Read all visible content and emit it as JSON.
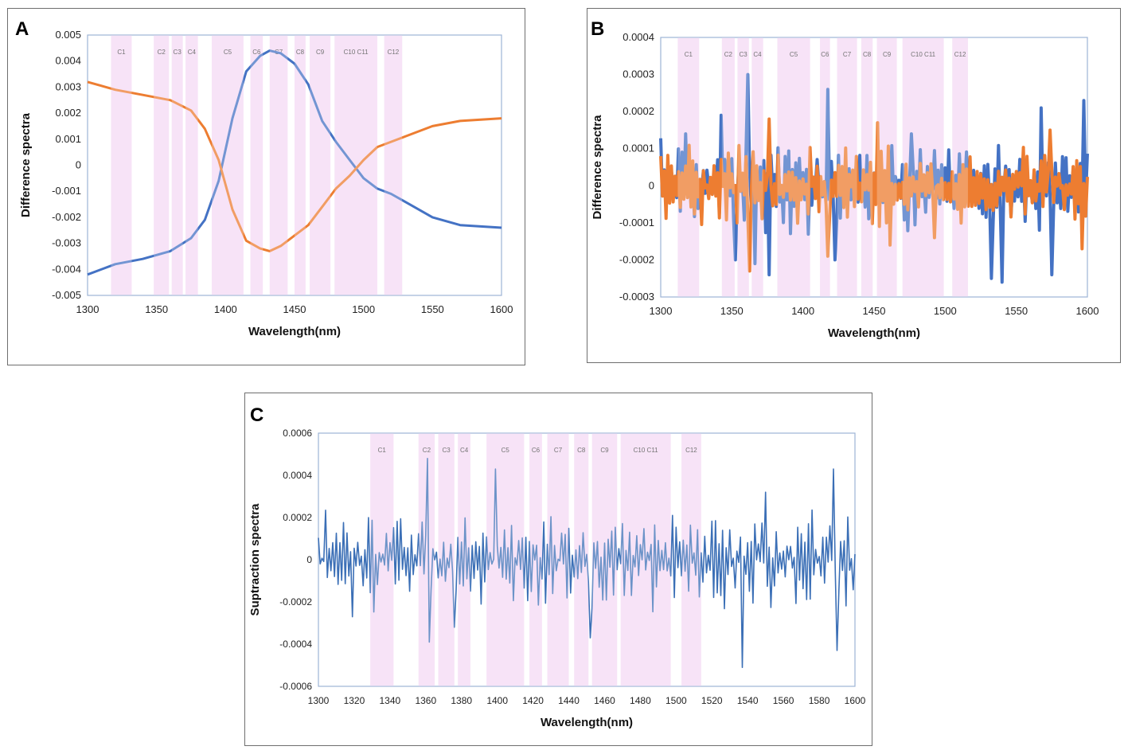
{
  "chart_data": [
    {
      "id": "A",
      "type": "line",
      "panel_label": "A",
      "xlabel": "Wavelength(nm)",
      "ylabel": "Difference spectra",
      "xlim": [
        1300,
        1600
      ],
      "ylim": [
        -0.005,
        0.005
      ],
      "x_ticks": [
        "1300",
        "1350",
        "1400",
        "1450",
        "1500",
        "1550",
        "1600"
      ],
      "y_ticks": [
        "0.005",
        "0.004",
        "0.003",
        "0.002",
        "0.001",
        "0",
        "-0.001",
        "-0.002",
        "-0.003",
        "-0.004",
        "-0.005"
      ],
      "highlight_color": "#f2d3f2",
      "regions": [
        {
          "label": "C1",
          "x0": 1317,
          "x1": 1332
        },
        {
          "label": "C2",
          "x0": 1348,
          "x1": 1359
        },
        {
          "label": "C3",
          "x0": 1361,
          "x1": 1369
        },
        {
          "label": "C4",
          "x0": 1371,
          "x1": 1380
        },
        {
          "label": "C5",
          "x0": 1390,
          "x1": 1413
        },
        {
          "label": "C6",
          "x0": 1418,
          "x1": 1427
        },
        {
          "label": "C7",
          "x0": 1432,
          "x1": 1445
        },
        {
          "label": "C8",
          "x0": 1450,
          "x1": 1458
        },
        {
          "label": "C9",
          "x0": 1461,
          "x1": 1476
        },
        {
          "label": "C10 C11",
          "x0": 1479,
          "x1": 1510
        },
        {
          "label": "C12",
          "x0": 1515,
          "x1": 1528
        }
      ],
      "series": [
        {
          "name": "blue",
          "color": "#4472c4",
          "stroke": 3,
          "x": [
            1300,
            1320,
            1340,
            1360,
            1375,
            1385,
            1395,
            1405,
            1415,
            1425,
            1432,
            1440,
            1450,
            1460,
            1470,
            1480,
            1490,
            1500,
            1510,
            1520,
            1530,
            1550,
            1570,
            1600
          ],
          "y": [
            -0.0042,
            -0.0038,
            -0.0036,
            -0.0033,
            -0.0028,
            -0.0021,
            -0.0006,
            0.0018,
            0.0036,
            0.0042,
            0.0044,
            0.0043,
            0.0039,
            0.0031,
            0.0017,
            0.0009,
            0.0002,
            -0.0005,
            -0.0009,
            -0.0011,
            -0.0014,
            -0.002,
            -0.0023,
            -0.0024
          ]
        },
        {
          "name": "orange",
          "color": "#ed7d31",
          "stroke": 3,
          "x": [
            1300,
            1320,
            1340,
            1360,
            1375,
            1385,
            1395,
            1405,
            1415,
            1425,
            1432,
            1440,
            1450,
            1460,
            1470,
            1480,
            1490,
            1500,
            1510,
            1520,
            1530,
            1550,
            1570,
            1600
          ],
          "y": [
            0.0032,
            0.0029,
            0.0027,
            0.0025,
            0.0021,
            0.0014,
            0.0002,
            -0.0017,
            -0.0029,
            -0.0032,
            -0.0033,
            -0.0031,
            -0.0027,
            -0.0023,
            -0.0016,
            -0.0009,
            -0.0004,
            0.0002,
            0.0007,
            0.0009,
            0.0011,
            0.0015,
            0.0017,
            0.0018
          ]
        }
      ]
    },
    {
      "id": "B",
      "type": "line",
      "panel_label": "B",
      "xlabel": "Wavelength(nm)",
      "ylabel": "Difference spectra",
      "xlim": [
        1300,
        1600
      ],
      "ylim": [
        -0.0003,
        0.0004
      ],
      "x_ticks": [
        "1300",
        "1350",
        "1400",
        "1450",
        "1500",
        "1550",
        "1600"
      ],
      "y_ticks": [
        "0.0004",
        "0.0003",
        "0.0002",
        "0.0001",
        "0",
        "-0.0001",
        "-0.0002",
        "-0.0003"
      ],
      "highlight_color": "#f2d3f2",
      "regions": [
        {
          "label": "C1",
          "x0": 1312,
          "x1": 1327
        },
        {
          "label": "C2",
          "x0": 1343,
          "x1": 1352
        },
        {
          "label": "C3",
          "x0": 1354,
          "x1": 1362
        },
        {
          "label": "C4",
          "x0": 1364,
          "x1": 1372
        },
        {
          "label": "C5",
          "x0": 1382,
          "x1": 1405
        },
        {
          "label": "C6",
          "x0": 1412,
          "x1": 1419
        },
        {
          "label": "C7",
          "x0": 1424,
          "x1": 1438
        },
        {
          "label": "C8",
          "x0": 1441,
          "x1": 1449
        },
        {
          "label": "C9",
          "x0": 1452,
          "x1": 1466
        },
        {
          "label": "C10 C11",
          "x0": 1470,
          "x1": 1499
        },
        {
          "label": "C12",
          "x0": 1505,
          "x1": 1516
        }
      ],
      "series": [
        {
          "name": "blue",
          "color": "#4472c4",
          "stroke": 4,
          "kind": "noise",
          "seed": 7,
          "points": 240,
          "amplitude": 9e-05,
          "peaks": [
            {
              "x": 1318,
              "y": 0.00014
            },
            {
              "x": 1342,
              "y": 0.00019
            },
            {
              "x": 1352,
              "y": -0.0002
            },
            {
              "x": 1361,
              "y": 0.0003
            },
            {
              "x": 1366,
              "y": -0.00021
            },
            {
              "x": 1376,
              "y": -0.00024
            },
            {
              "x": 1418,
              "y": 0.00026
            },
            {
              "x": 1422,
              "y": -0.0002
            },
            {
              "x": 1476,
              "y": 0.00014
            },
            {
              "x": 1532,
              "y": -0.00025
            },
            {
              "x": 1540,
              "y": -0.00026
            },
            {
              "x": 1568,
              "y": 0.00021
            },
            {
              "x": 1575,
              "y": -0.00024
            },
            {
              "x": 1598,
              "y": 0.00023
            }
          ]
        },
        {
          "name": "orange",
          "color": "#ed7d31",
          "stroke": 4,
          "kind": "noise",
          "seed": 19,
          "points": 240,
          "amplitude": 8e-05,
          "peaks": [
            {
              "x": 1362,
              "y": -0.00023
            },
            {
              "x": 1376,
              "y": 0.00018
            },
            {
              "x": 1418,
              "y": -0.00019
            },
            {
              "x": 1452,
              "y": 0.00017
            },
            {
              "x": 1461,
              "y": -0.00016
            },
            {
              "x": 1492,
              "y": -0.00014
            },
            {
              "x": 1574,
              "y": 0.00015
            },
            {
              "x": 1596,
              "y": -0.00017
            }
          ]
        }
      ]
    },
    {
      "id": "C",
      "type": "line",
      "panel_label": "C",
      "xlabel": "Wavelength(nm)",
      "ylabel": "Suptraction spectra",
      "xlim": [
        1300,
        1600
      ],
      "ylim": [
        -0.0006,
        0.0006
      ],
      "x_ticks": [
        "1300",
        "1320",
        "1340",
        "1360",
        "1380",
        "1400",
        "1420",
        "1440",
        "1460",
        "1480",
        "1500",
        "1520",
        "1540",
        "1560",
        "1580",
        "1600"
      ],
      "y_ticks": [
        "0.0006",
        "0.0004",
        "0.0002",
        "0",
        "-0.0002",
        "-0.0004",
        "-0.0006"
      ],
      "highlight_color": "#f2d3f2",
      "regions": [
        {
          "label": "C1",
          "x0": 1329,
          "x1": 1342
        },
        {
          "label": "C2",
          "x0": 1356,
          "x1": 1365
        },
        {
          "label": "C3",
          "x0": 1367,
          "x1": 1376
        },
        {
          "label": "C4",
          "x0": 1378,
          "x1": 1385
        },
        {
          "label": "C5",
          "x0": 1394,
          "x1": 1415
        },
        {
          "label": "C6",
          "x0": 1418,
          "x1": 1425
        },
        {
          "label": "C7",
          "x0": 1428,
          "x1": 1440
        },
        {
          "label": "C8",
          "x0": 1443,
          "x1": 1451
        },
        {
          "label": "C9",
          "x0": 1453,
          "x1": 1467
        },
        {
          "label": "C10 C11",
          "x0": 1469,
          "x1": 1497
        },
        {
          "label": "C12",
          "x0": 1503,
          "x1": 1514
        }
      ],
      "series": [
        {
          "name": "blue",
          "color": "#3b6fb6",
          "stroke": 1.6,
          "kind": "noise",
          "seed": 31,
          "points": 300,
          "amplitude": 0.00018,
          "peaks": [
            {
              "x": 1361,
              "y": 0.00048
            },
            {
              "x": 1362,
              "y": -0.00039
            },
            {
              "x": 1376,
              "y": -0.00032
            },
            {
              "x": 1399,
              "y": 0.00043
            },
            {
              "x": 1452,
              "y": -0.00037
            },
            {
              "x": 1537,
              "y": -0.00051
            },
            {
              "x": 1550,
              "y": 0.00032
            },
            {
              "x": 1588,
              "y": 0.00043
            },
            {
              "x": 1590,
              "y": -0.00043
            },
            {
              "x": 1319,
              "y": -0.00027
            }
          ]
        }
      ]
    }
  ]
}
